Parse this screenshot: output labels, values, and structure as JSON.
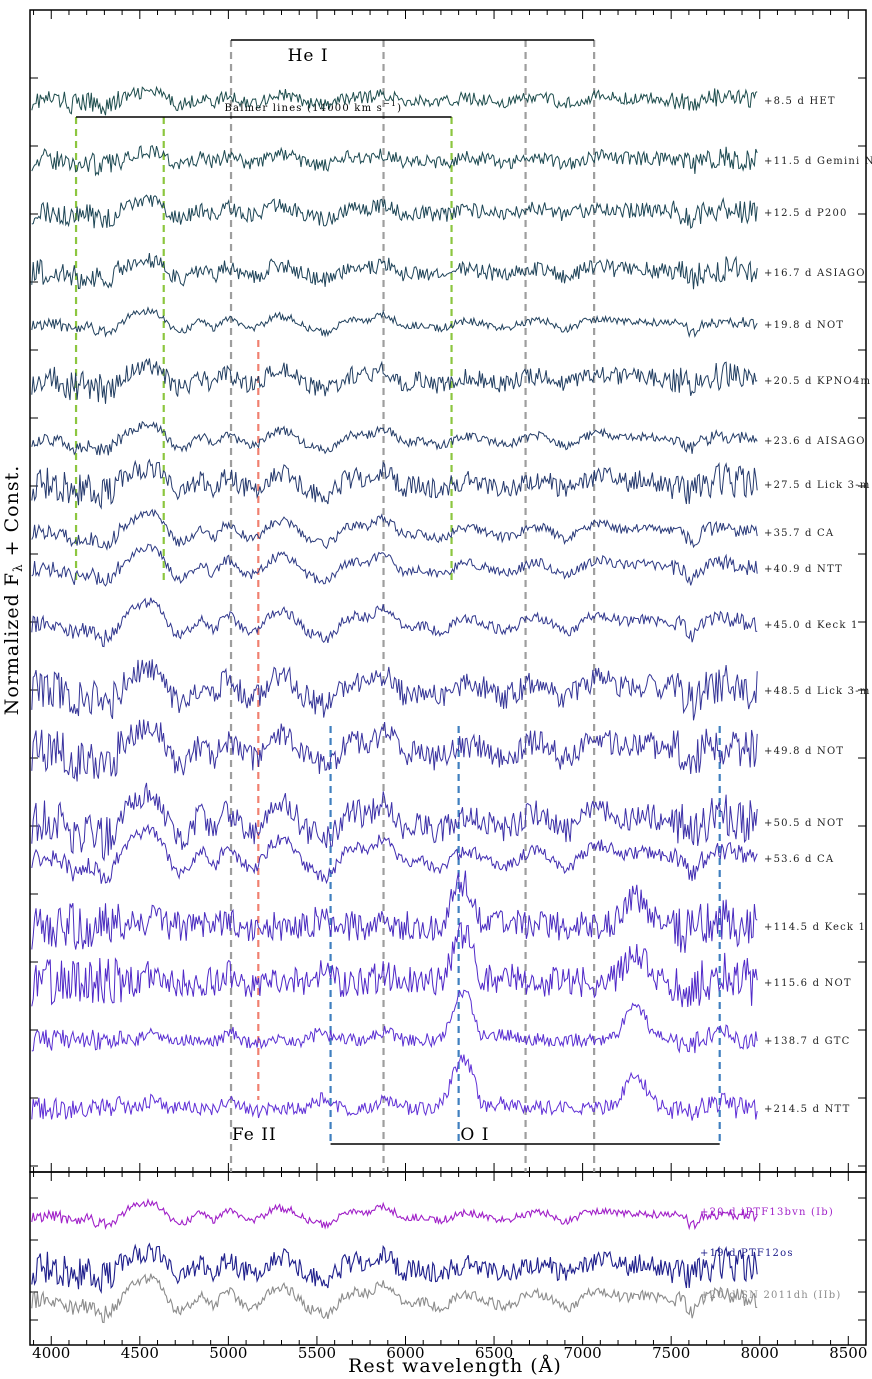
{
  "chart_data": [
    {
      "type": "line",
      "panel": "top",
      "ylabel": "Normalized F",
      "ylabel_subscript": "λ",
      "ylabel_suffix": " + Const.",
      "xlim": [
        3880,
        8600
      ],
      "grid": false,
      "legend": "labels at right end of each spectrum",
      "line_colors": {
        "He I": "#9e9e9e",
        "Balmer": "#8cc63f",
        "Fe II": "#f08070",
        "O I": "#3f7fbf"
      },
      "line_markers": [
        {
          "group": "He I",
          "label": "He I",
          "label_x": 5450,
          "wavelengths": [
            5015,
            5876,
            6678,
            7065
          ]
        },
        {
          "group": "Balmer",
          "label": "Balmer lines (14000 km s",
          "label_sup": "−1",
          "label_tail": ")",
          "wavelengths": [
            4140,
            4635,
            6260
          ]
        },
        {
          "group": "Fe II",
          "label": "Fe II",
          "label_x": 5020,
          "wavelengths": [
            5169
          ]
        },
        {
          "group": "O I",
          "label": "O I",
          "label_x": 6310,
          "wavelengths": [
            5577,
            6300,
            7774
          ]
        }
      ],
      "series": [
        {
          "name": "+8.5 d HET",
          "color": "#1e4d4d"
        },
        {
          "name": "+11.5 d Gemini N",
          "color": "#1e4a52"
        },
        {
          "name": "+12.5 d P200",
          "color": "#1e4656"
        },
        {
          "name": "+16.7 d ASIAGO",
          "color": "#20445a"
        },
        {
          "name": "+19.8 d NOT",
          "color": "#22425e"
        },
        {
          "name": "+20.5 d KPNO4m",
          "color": "#233f62"
        },
        {
          "name": "+23.6 d AISAGO",
          "color": "#253d68"
        },
        {
          "name": "+27.5 d Lick 3-m",
          "color": "#263a6e"
        },
        {
          "name": "+35.7 d CA",
          "color": "#2b3b7a"
        },
        {
          "name": "+40.9 d NTT",
          "color": "#2e3a85"
        },
        {
          "name": "+45.0 d Keck 1",
          "color": "#32388e"
        },
        {
          "name": "+48.5 d Lick 3-m",
          "color": "#363697"
        },
        {
          "name": "+49.8 d NOT",
          "color": "#3a339f"
        },
        {
          "name": "+50.5 d NOT",
          "color": "#3d31a8"
        },
        {
          "name": "+53.6 d CA",
          "color": "#422eb1"
        },
        {
          "name": "+114.5 d Keck 1",
          "color": "#4a2cbf"
        },
        {
          "name": "+115.6 d NOT",
          "color": "#5029c8"
        },
        {
          "name": "+138.7 d GTC",
          "color": "#5a30d2"
        },
        {
          "name": "+214.5 d NTT",
          "color": "#6030d6"
        }
      ]
    },
    {
      "type": "line",
      "panel": "bottom",
      "xlabel": "Rest wavelength (Å)",
      "xlim": [
        3880,
        8600
      ],
      "xticks": [
        4000,
        4500,
        5000,
        5500,
        6000,
        6500,
        7000,
        7500,
        8000,
        8500
      ],
      "grid": false,
      "series": [
        {
          "name": "+20 d iPTF13bvn (Ib)",
          "color": "#a020c8"
        },
        {
          "name": "+19 d PTF12os",
          "color": "#20208c"
        },
        {
          "name": "+20 d SN 2011dh (IIb)",
          "color": "#8c8c8c"
        }
      ]
    }
  ]
}
